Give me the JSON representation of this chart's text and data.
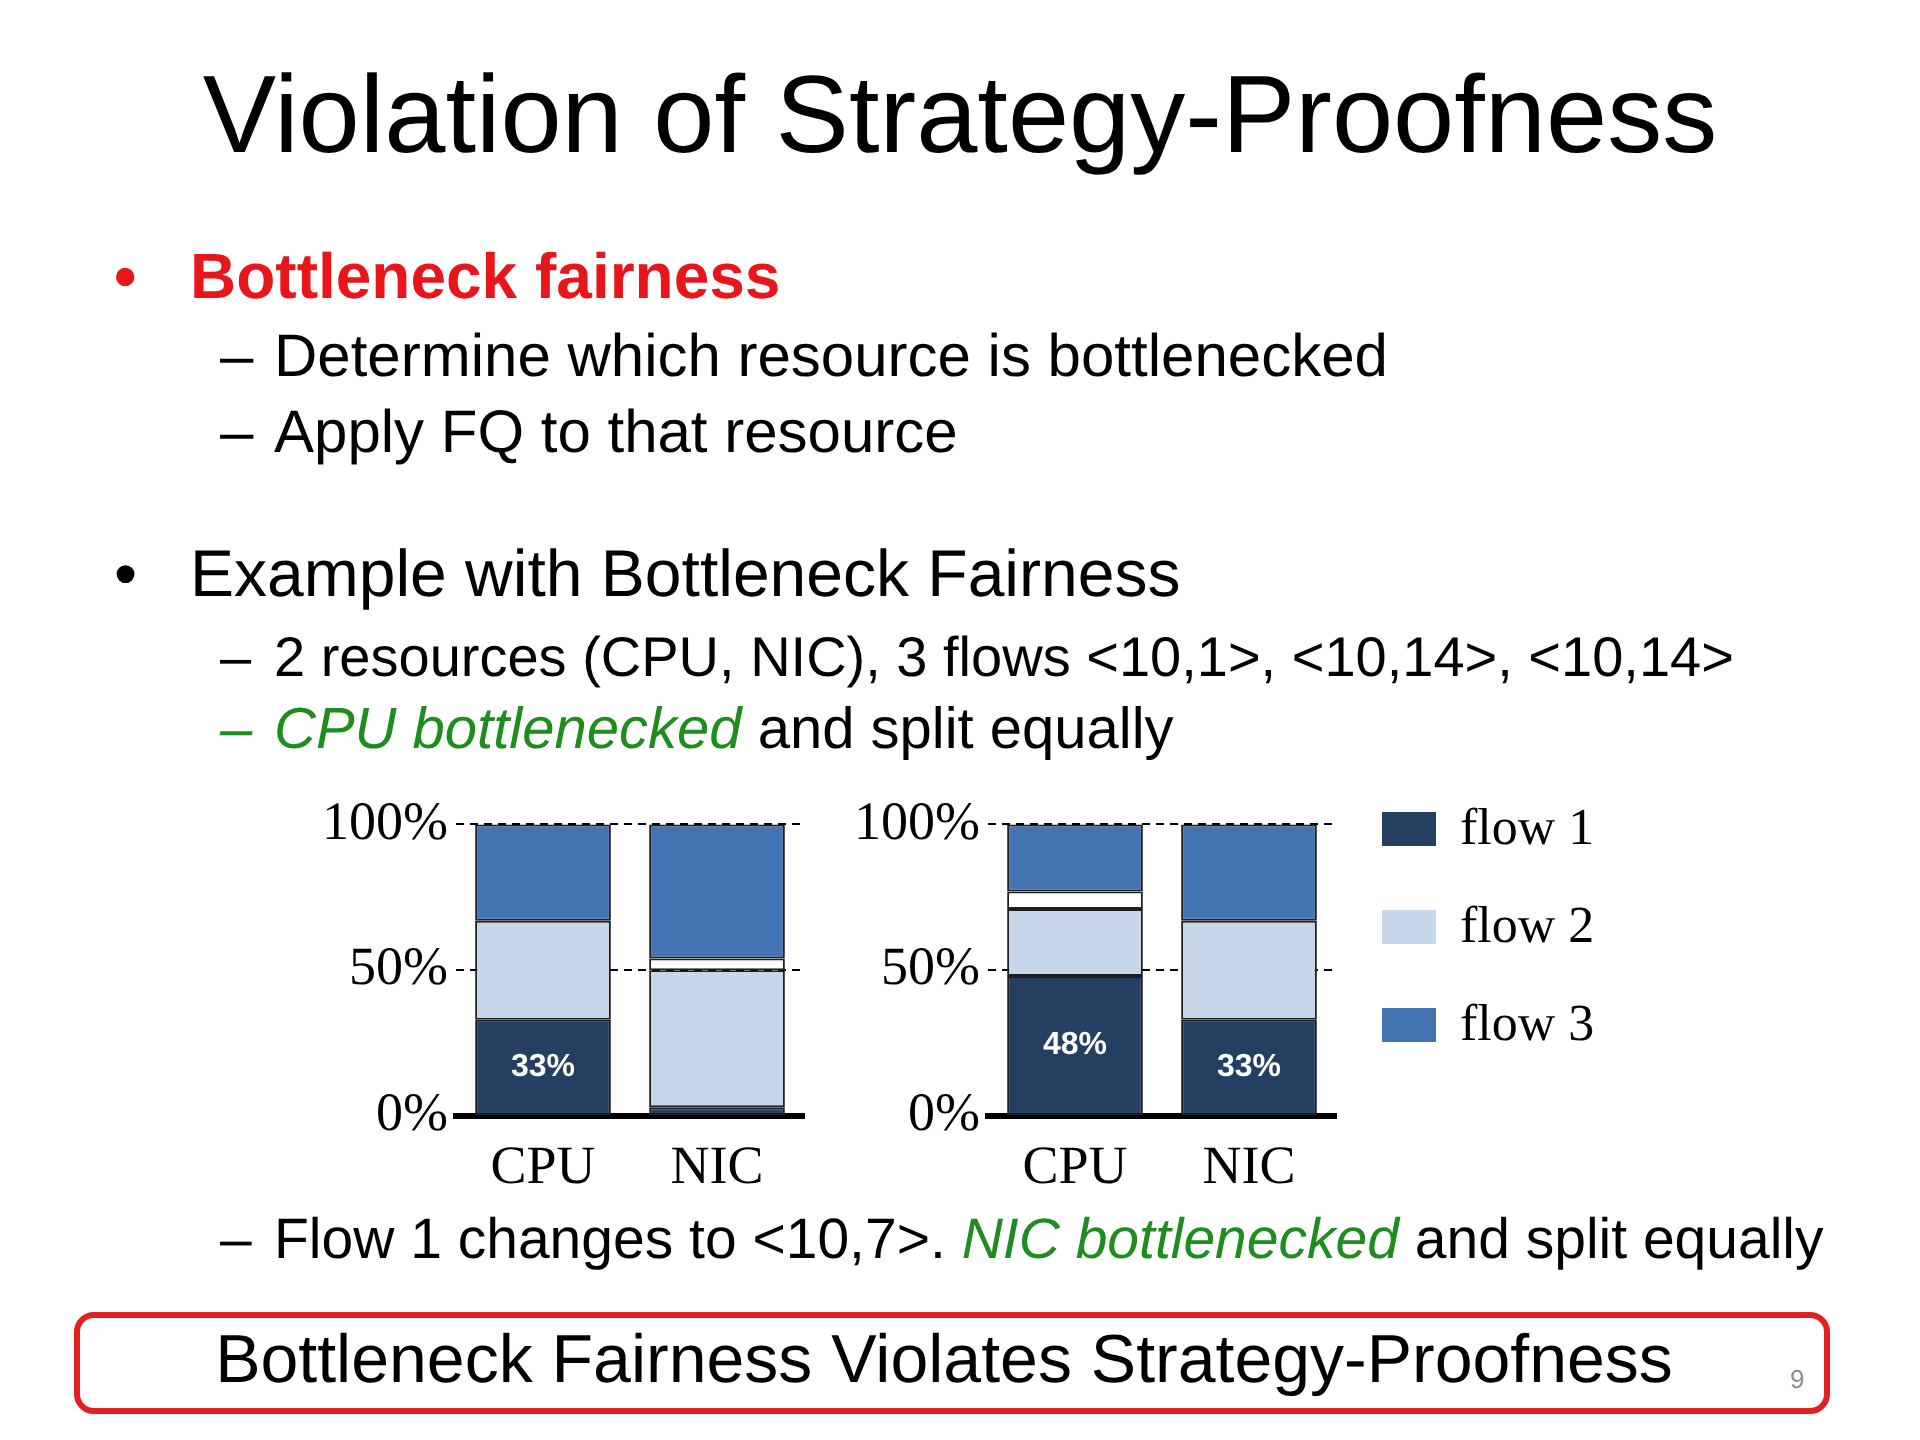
{
  "chart_data": [
    {
      "type": "bar",
      "title": "Violation of Strategy-Proofness",
      "annotations": [
        "• Bottleneck fairness",
        "– Determine which resource is bottlenecked",
        "– Apply FQ to that resource",
        "• Example with Bottleneck Fairness",
        "– 2 resources (CPU, NIC), 3 flows <10,1>, <10,14>, <10,14>",
        "– CPU bottlenecked",
        "and split equally",
        "– Flow 1 changes to <10,7>.",
        "NIC bottlenecked",
        "and split equally",
        "Bottleneck Fairness Violates Strategy-Proofness",
        "9"
      ],
      "categories": [
        "CPU",
        "NIC"
      ],
      "stacked": true,
      "series": [
        {
          "color": "#243f62",
          "values": [
            33,
            3
          ],
          "value_labels": [
            "33%",
            null
          ]
        },
        {
          "color": "#c8d6ea",
          "values": [
            34,
            47
          ]
        },
        {
          "color": "#ffffff",
          "values": [
            null,
            4
          ]
        },
        {
          "color": "#4473b1",
          "values": [
            33,
            46
          ]
        }
      ],
      "ylim": [
        0,
        100
      ],
      "yticks": [
        {
          "value": 0,
          "label": "0%"
        },
        {
          "value": 50,
          "label": "50%"
        },
        {
          "value": 100,
          "label": "100%"
        }
      ],
      "grid": "y"
    },
    {
      "type": "bar",
      "categories": [
        "CPU",
        "NIC"
      ],
      "stacked": true,
      "series": [
        {
          "name": "flow 1",
          "color": "#243f62",
          "values": [
            48,
            33
          ],
          "value_labels": [
            "48%",
            "33%"
          ]
        },
        {
          "name": "flow 2",
          "color": "#c8d6ea",
          "values": [
            23,
            34
          ]
        },
        {
          "color": "#ffffff",
          "values": [
            6,
            null
          ]
        },
        {
          "name": "flow 3",
          "color": "#4473b1",
          "values": [
            23,
            33
          ]
        }
      ],
      "ylim": [
        0,
        100
      ],
      "yticks": [
        {
          "value": 0,
          "label": "0%"
        },
        {
          "value": 50,
          "label": "50%"
        },
        {
          "value": 100,
          "label": "100%"
        }
      ],
      "grid": "y",
      "legend": "right"
    }
  ]
}
